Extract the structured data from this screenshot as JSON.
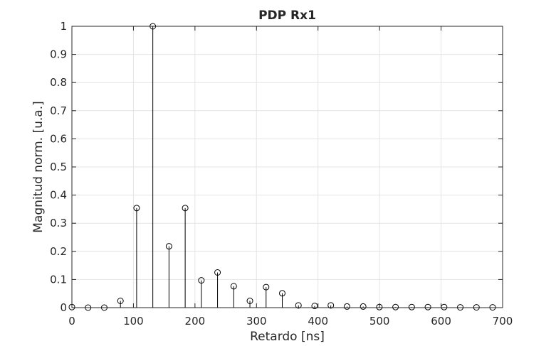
{
  "chart_data": {
    "type": "stem",
    "title": "PDP Rx1",
    "xlabel": "Retardo [ns]",
    "ylabel": "Magnitud norm. [u.a.]",
    "xlim": [
      0,
      700
    ],
    "ylim": [
      0,
      1
    ],
    "xticks": [
      0,
      100,
      200,
      300,
      400,
      500,
      600,
      700
    ],
    "yticks": [
      0,
      0.1,
      0.2,
      0.3,
      0.4,
      0.5,
      0.6,
      0.7,
      0.8,
      0.9,
      1
    ],
    "xtick_labels": [
      "0",
      "100",
      "200",
      "300",
      "400",
      "500",
      "600",
      "700"
    ],
    "ytick_labels": [
      "0",
      "0.1",
      "0.2",
      "0.3",
      "0.4",
      "0.5",
      "0.6",
      "0.7",
      "0.8",
      "0.9",
      "1"
    ],
    "grid": true,
    "marker": "open-circle",
    "series": [
      {
        "x": [
          0,
          26.3,
          52.6,
          78.9,
          105.2,
          131.5,
          157.8,
          184.1,
          210.4,
          236.7,
          263.0,
          289.3,
          315.6,
          341.9,
          368.2,
          394.5,
          420.8,
          447.1,
          473.4,
          499.7,
          526.0,
          552.3,
          578.6,
          604.9,
          631.2,
          657.5,
          683.8
        ],
        "y": [
          0.002,
          0.0,
          0.0,
          0.024,
          0.354,
          1.0,
          0.218,
          0.354,
          0.097,
          0.125,
          0.076,
          0.024,
          0.073,
          0.051,
          0.008,
          0.006,
          0.008,
          0.004,
          0.004,
          0.002,
          0.002,
          0.002,
          0.002,
          0.002,
          0.001,
          0.001,
          0.001
        ]
      }
    ]
  }
}
